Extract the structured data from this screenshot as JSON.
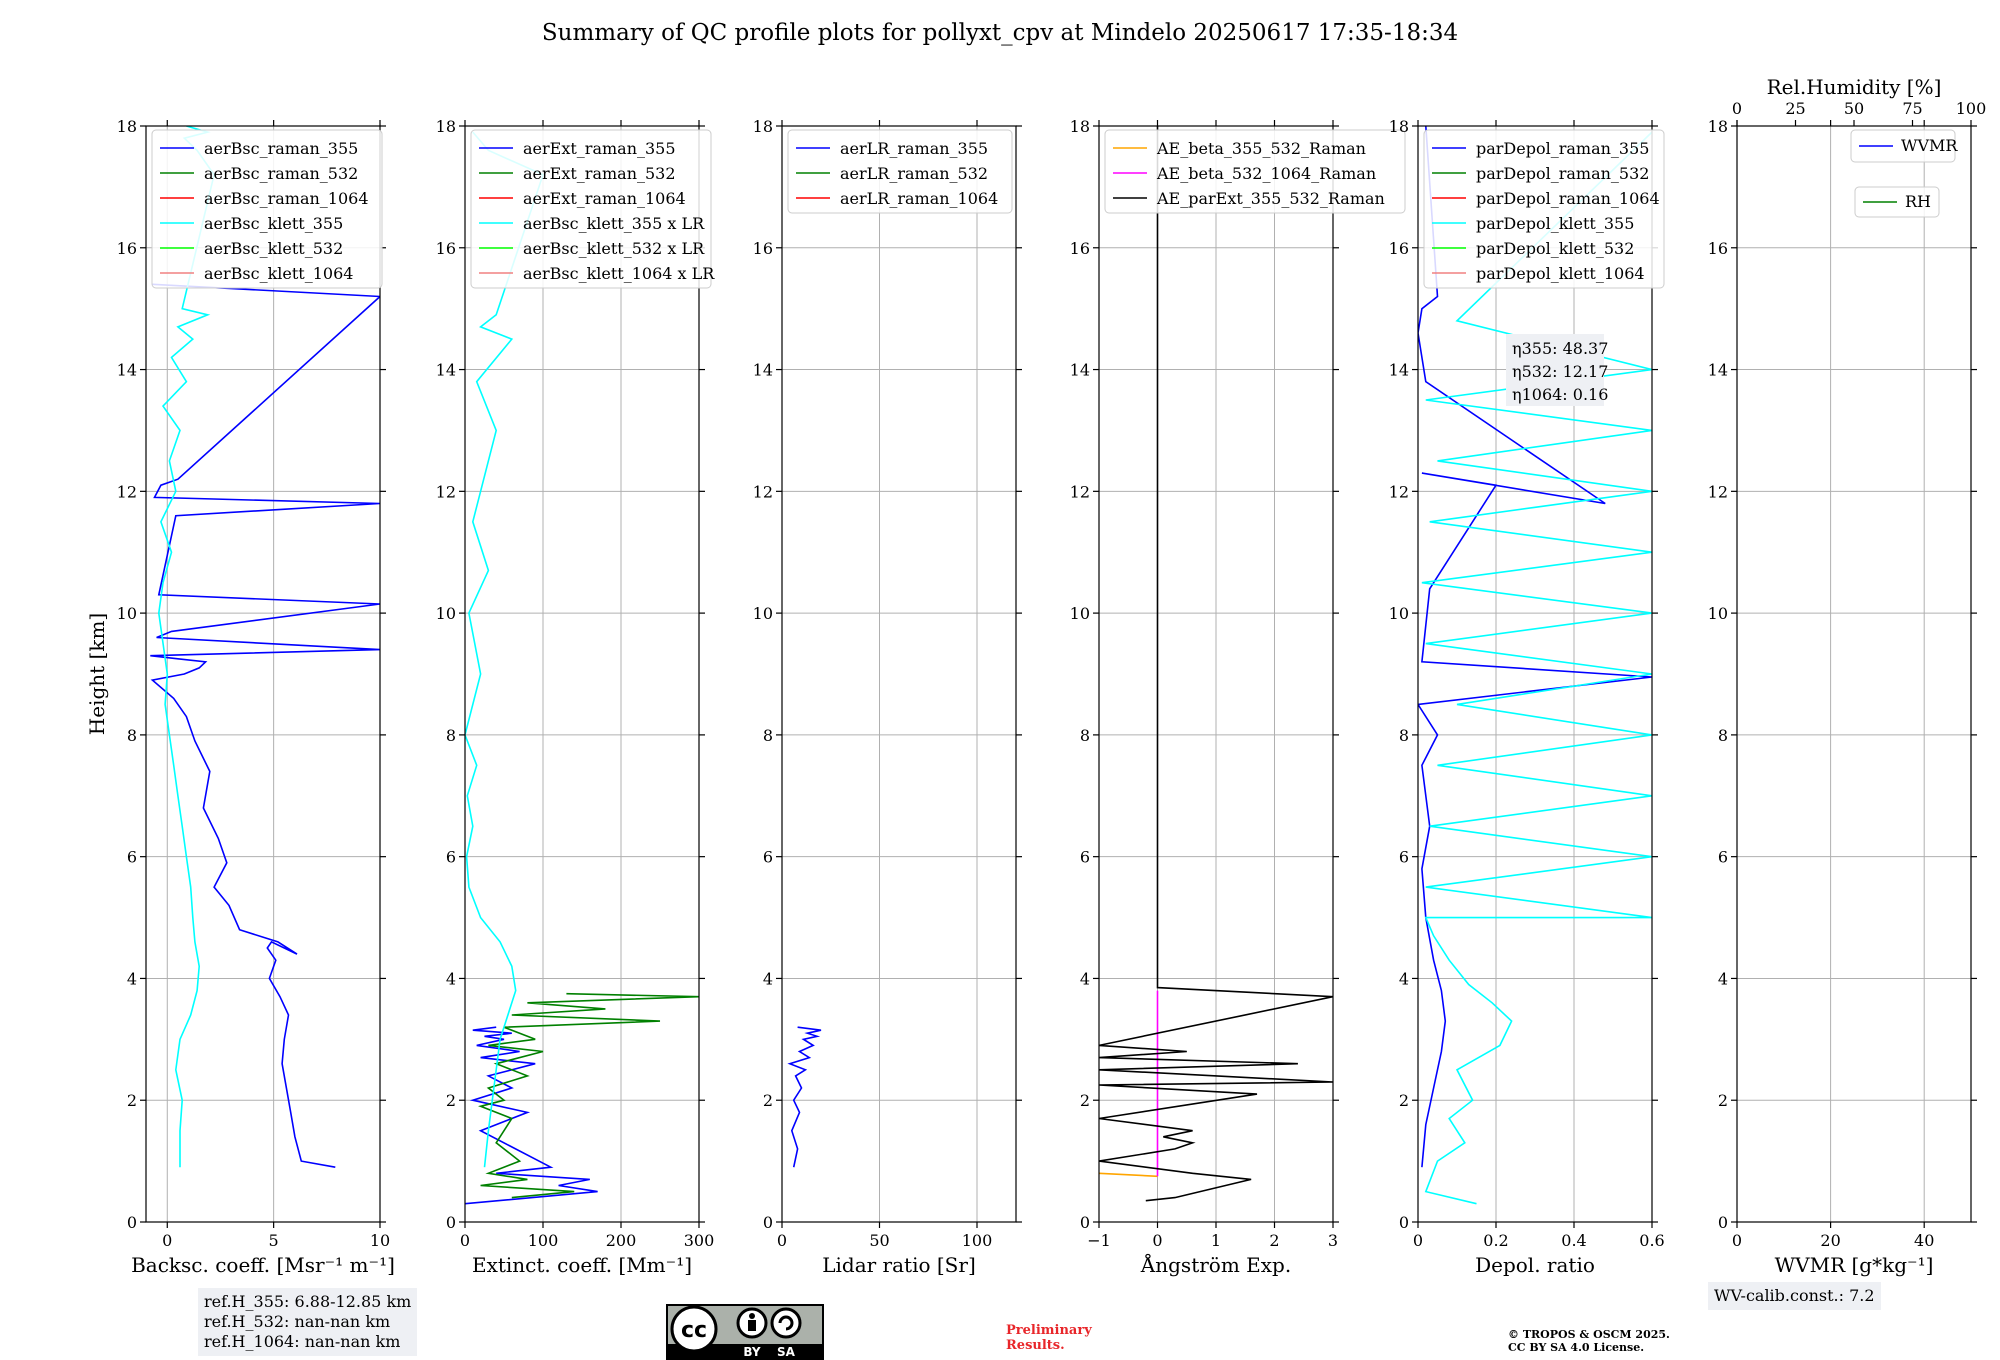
{
  "title": "Summary of QC profile plots for pollyxt_cpv at Mindelo 20250617 17:35-18:34",
  "colors": {
    "raman_355": "#0000ff",
    "raman_532": "#008000",
    "raman_1064": "#ff0000",
    "klett_355": "#00ffff",
    "klett_532": "#00ff00",
    "klett_1064": "#f08080",
    "ae_355_532": "#ffa500",
    "ae_532_1064": "#ff00ff",
    "ae_ext": "#000000",
    "wvmr": "#0000ff",
    "rh": "#008000",
    "prelim": "#e8262a"
  },
  "chart_data": [
    {
      "type": "line",
      "id": "backscatter",
      "xlabel": "Backsc. coeff. [Msr⁻¹ m⁻¹]",
      "ylabel": "Height [km]",
      "xlim": [
        -1,
        10
      ],
      "ylim": [
        0,
        18
      ],
      "xticks": [
        0,
        5,
        10
      ],
      "yticks": [
        0,
        2,
        4,
        6,
        8,
        10,
        12,
        14,
        16,
        18
      ],
      "grid": true,
      "legend_position": "top",
      "legend": [
        "aerBsc_raman_355",
        "aerBsc_raman_532",
        "aerBsc_raman_1064",
        "aerBsc_klett_355",
        "aerBsc_klett_532",
        "aerBsc_klett_1064"
      ],
      "legend_keys": [
        "raman_355",
        "raman_532",
        "raman_1064",
        "klett_355",
        "klett_532",
        "klett_1064"
      ],
      "series": [
        {
          "key": "raman_355",
          "x": [
            7.9,
            6.3,
            6.0,
            5.8,
            5.6,
            5.4,
            5.5,
            5.7,
            5.3,
            4.8,
            5.1,
            4.7,
            4.9,
            6.1,
            5.2,
            3.4,
            2.9,
            2.2,
            2.8,
            2.4,
            1.7,
            2.0,
            1.3,
            0.9,
            0.3,
            -0.7,
            0.8,
            1.5,
            1.8,
            0.5,
            -0.8,
            10.0,
            -0.5,
            0.2,
            10.0,
            -0.4,
            0.4,
            10.0,
            -0.6,
            -0.3,
            0.5,
            10.0,
            -0.7
          ],
          "y": [
            0.9,
            1.0,
            1.4,
            1.8,
            2.2,
            2.6,
            3.0,
            3.4,
            3.7,
            4.0,
            4.3,
            4.5,
            4.6,
            4.4,
            4.6,
            4.8,
            5.2,
            5.5,
            5.9,
            6.3,
            6.8,
            7.4,
            7.9,
            8.3,
            8.6,
            8.9,
            9.0,
            9.1,
            9.2,
            9.25,
            9.3,
            9.4,
            9.6,
            9.7,
            10.15,
            10.3,
            11.6,
            11.8,
            11.9,
            12.1,
            12.2,
            15.2,
            15.4
          ]
        },
        {
          "key": "klett_355",
          "x": [
            0.6,
            0.6,
            0.7,
            0.4,
            0.6,
            1.1,
            1.4,
            1.5,
            1.3,
            1.2,
            1.1,
            0.9,
            0.7,
            0.5,
            0.3,
            0.1,
            -0.1,
            0.0,
            -0.4,
            -0.2,
            0.2,
            -0.3,
            0.4,
            0.1,
            0.6,
            -0.2,
            0.9,
            0.2,
            1.2,
            0.5,
            1.9,
            0.7,
            2.2,
            1.4,
            0.8,
            1.9,
            0.9
          ],
          "y": [
            0.9,
            1.5,
            2.0,
            2.5,
            3.0,
            3.4,
            3.8,
            4.2,
            4.6,
            5.0,
            5.5,
            6.0,
            6.5,
            7.0,
            7.5,
            8.0,
            8.5,
            9.0,
            10.0,
            10.5,
            11.0,
            11.5,
            12.0,
            12.5,
            13.0,
            13.4,
            13.8,
            14.2,
            14.5,
            14.7,
            14.9,
            15.0,
            17.2,
            17.6,
            17.8,
            17.9,
            18.0
          ]
        }
      ]
    },
    {
      "type": "line",
      "id": "extinction",
      "xlabel": "Extinct. coeff. [Mm⁻¹]",
      "xlim": [
        0,
        300
      ],
      "ylim": [
        0,
        18
      ],
      "xticks": [
        0,
        100,
        200,
        300
      ],
      "yticks": [
        0,
        2,
        4,
        6,
        8,
        10,
        12,
        14,
        16,
        18
      ],
      "grid": true,
      "legend_position": "top",
      "legend": [
        "aerExt_raman_355",
        "aerExt_raman_532",
        "aerExt_raman_1064",
        "aerBsc_klett_355 x LR",
        "aerBsc_klett_532 x LR",
        "aerBsc_klett_1064 x LR"
      ],
      "legend_keys": [
        "raman_355",
        "raman_532",
        "raman_1064",
        "klett_355",
        "klett_532",
        "klett_1064"
      ],
      "series": [
        {
          "key": "raman_355",
          "x": [
            0,
            170,
            120,
            160,
            40,
            110,
            20,
            80,
            10,
            60,
            30,
            90,
            20,
            70,
            15,
            50,
            25,
            60,
            10,
            40
          ],
          "y": [
            0.3,
            0.5,
            0.6,
            0.7,
            0.8,
            0.9,
            1.5,
            1.8,
            2.0,
            2.2,
            2.4,
            2.6,
            2.7,
            2.8,
            2.9,
            3.0,
            3.05,
            3.1,
            3.15,
            3.2
          ]
        },
        {
          "key": "raman_532",
          "x": [
            60,
            140,
            20,
            80,
            30,
            70,
            40,
            60,
            20,
            50,
            30,
            80,
            40,
            100,
            30,
            90,
            50,
            250,
            60,
            180,
            80,
            300,
            130
          ],
          "y": [
            0.4,
            0.5,
            0.6,
            0.7,
            0.8,
            1.0,
            1.3,
            1.7,
            1.9,
            2.0,
            2.2,
            2.4,
            2.6,
            2.8,
            2.9,
            3.0,
            3.2,
            3.3,
            3.4,
            3.5,
            3.6,
            3.7,
            3.75
          ]
        },
        {
          "key": "klett_355",
          "x": [
            25,
            30,
            35,
            40,
            45,
            55,
            65,
            60,
            45,
            20,
            5,
            2,
            10,
            3,
            15,
            0,
            20,
            5,
            30,
            10,
            20,
            40,
            15,
            60,
            20,
            40,
            100,
            30,
            10
          ],
          "y": [
            0.9,
            1.5,
            2.0,
            2.5,
            3.0,
            3.4,
            3.8,
            4.2,
            4.6,
            5.0,
            5.5,
            6.0,
            6.5,
            7.0,
            7.5,
            8.0,
            9.0,
            10.0,
            10.7,
            11.5,
            12.0,
            13.0,
            13.8,
            14.5,
            14.7,
            14.9,
            17.2,
            17.6,
            17.9
          ]
        }
      ]
    },
    {
      "type": "line",
      "id": "lidar_ratio",
      "xlabel": "Lidar ratio [Sr]",
      "xlim": [
        0,
        120
      ],
      "ylim": [
        0,
        18
      ],
      "xticks": [
        0,
        50,
        100
      ],
      "yticks": [
        0,
        2,
        4,
        6,
        8,
        10,
        12,
        14,
        16,
        18
      ],
      "grid": true,
      "legend_position": "top",
      "legend": [
        "aerLR_raman_355",
        "aerLR_raman_532",
        "aerLR_raman_1064"
      ],
      "legend_keys": [
        "raman_355",
        "raman_532",
        "raman_1064"
      ],
      "series": [
        {
          "key": "raman_355",
          "x": [
            6,
            8,
            5,
            9,
            6,
            10,
            7,
            12,
            4,
            14,
            9,
            16,
            11,
            18,
            13,
            20,
            8
          ],
          "y": [
            0.9,
            1.2,
            1.5,
            1.8,
            2.0,
            2.2,
            2.4,
            2.5,
            2.6,
            2.7,
            2.8,
            2.9,
            3.0,
            3.05,
            3.1,
            3.15,
            3.2
          ]
        }
      ]
    },
    {
      "type": "line",
      "id": "angstrom",
      "xlabel": "Ångström Exp.",
      "xlim": [
        -1,
        3
      ],
      "ylim": [
        0,
        18
      ],
      "xticks": [
        -1,
        0,
        1,
        2,
        3
      ],
      "yticks": [
        0,
        2,
        4,
        6,
        8,
        10,
        12,
        14,
        16,
        18
      ],
      "grid": true,
      "legend_position": "top",
      "legend": [
        "AE_beta_355_532_Raman",
        "AE_beta_532_1064_Raman",
        "AE_parExt_355_532_Raman"
      ],
      "legend_keys": [
        "ae_355_532",
        "ae_532_1064",
        "ae_ext"
      ],
      "series": [
        {
          "key": "ae_355_532",
          "x": [
            -1.0,
            0.0
          ],
          "y": [
            0.8,
            0.75
          ]
        },
        {
          "key": "ae_532_1064",
          "x": [
            0.0,
            0.0
          ],
          "y": [
            0.75,
            3.8
          ]
        },
        {
          "key": "ae_ext",
          "x": [
            -0.2,
            0.3,
            1.6,
            0.6,
            -1.0,
            0.3,
            0.6,
            0.1,
            0.6,
            -1.0,
            1.7,
            -1.0,
            3.0,
            -1.0,
            2.4,
            -1.0,
            0.5,
            -1.0,
            3.0,
            0.0,
            0.0
          ],
          "y": [
            0.35,
            0.4,
            0.7,
            0.8,
            1.0,
            1.2,
            1.3,
            1.4,
            1.5,
            1.7,
            2.1,
            2.25,
            2.3,
            2.5,
            2.6,
            2.7,
            2.8,
            2.9,
            3.7,
            3.85,
            18.0
          ]
        }
      ]
    },
    {
      "type": "line",
      "id": "depol",
      "xlabel": "Depol. ratio",
      "xlim": [
        0,
        0.6
      ],
      "ylim": [
        0,
        18
      ],
      "xticks": [
        0.0,
        0.2,
        0.4,
        0.6
      ],
      "yticks": [
        0,
        2,
        4,
        6,
        8,
        10,
        12,
        14,
        16,
        18
      ],
      "grid": true,
      "legend_position": "top",
      "legend": [
        "parDepol_raman_355",
        "parDepol_raman_532",
        "parDepol_raman_1064",
        "parDepol_klett_355",
        "parDepol_klett_532",
        "parDepol_klett_1064"
      ],
      "legend_keys": [
        "raman_355",
        "raman_532",
        "raman_1064",
        "klett_355",
        "klett_532",
        "klett_1064"
      ],
      "series": [
        {
          "key": "raman_355",
          "x": [
            0.01,
            0.02,
            0.04,
            0.06,
            0.07,
            0.06,
            0.04,
            0.02,
            0.01,
            0.03,
            0.01,
            0.05,
            0.0,
            0.6,
            0.01,
            0.03,
            0.2,
            0.01,
            0.48,
            0.02,
            0.0,
            0.01,
            0.05,
            0.02
          ],
          "y": [
            0.9,
            1.6,
            2.2,
            2.8,
            3.3,
            3.8,
            4.3,
            5.0,
            5.8,
            6.5,
            7.5,
            8.0,
            8.5,
            8.95,
            9.2,
            10.4,
            12.1,
            12.3,
            11.8,
            13.8,
            14.6,
            15.0,
            15.2,
            18.0
          ]
        },
        {
          "key": "klett_355",
          "x": [
            0.15,
            0.02,
            0.05,
            0.12,
            0.08,
            0.14,
            0.1,
            0.21,
            0.24,
            0.19,
            0.13,
            0.08,
            0.04,
            0.02,
            0.6,
            0.02,
            0.6,
            0.03,
            0.6,
            0.05,
            0.6,
            0.1,
            0.6,
            0.02,
            0.6,
            0.01,
            0.6,
            0.03,
            0.6,
            0.05,
            0.6,
            0.02,
            0.6,
            0.1,
            0.6
          ],
          "y": [
            0.3,
            0.5,
            1.0,
            1.3,
            1.7,
            2.0,
            2.5,
            2.9,
            3.3,
            3.6,
            3.9,
            4.3,
            4.7,
            5.0,
            5.0,
            5.5,
            6.0,
            6.5,
            7.0,
            7.5,
            8.0,
            8.5,
            9.0,
            9.5,
            10.0,
            10.5,
            11.0,
            11.5,
            12.0,
            12.5,
            13.0,
            13.5,
            14.0,
            14.8,
            17.9
          ]
        }
      ],
      "annotation": [
        "η355: 48.37",
        "η532: 12.17",
        "η1064: 0.16"
      ]
    },
    {
      "type": "line",
      "id": "wvmr",
      "xlabel": "WVMR [g*kg⁻¹]",
      "top_xlabel": "Rel.Humidity [%]",
      "xlim": [
        0,
        50
      ],
      "ylim": [
        0,
        18
      ],
      "top_xlim": [
        0,
        100
      ],
      "xticks": [
        0,
        20,
        40
      ],
      "top_xticks": [
        0,
        25,
        50,
        75,
        100
      ],
      "yticks": [
        0,
        2,
        4,
        6,
        8,
        10,
        12,
        14,
        16,
        18
      ],
      "grid": true,
      "legend_position": "top-right",
      "legend": [
        "WVMR",
        "RH"
      ],
      "legend_keys": [
        "wvmr",
        "rh"
      ],
      "series": []
    }
  ],
  "info": {
    "refh_355": "ref.H_355: 6.88-12.85 km",
    "refh_532": "ref.H_532: nan-nan km",
    "refh_1064": "ref.H_1064: nan-nan km",
    "wv_calib": "WV-calib.const.: 7.2",
    "prelim_1": "Preliminary",
    "prelim_2": "Results.",
    "copyright_1": "© TROPOS & OSCM 2025.",
    "copyright_2": "CC BY SA 4.0 License.",
    "license_badge": [
      "BY",
      "SA"
    ]
  }
}
